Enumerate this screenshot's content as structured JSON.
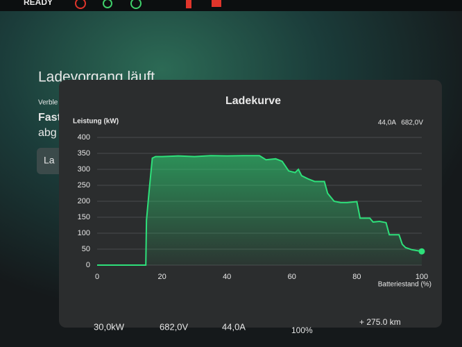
{
  "status": {
    "ready": "READY"
  },
  "background": {
    "heading": "Ladevorgang läuft",
    "line1": "Verble",
    "line2": "Fast",
    "line3": "abg",
    "button": "La"
  },
  "chart_data": {
    "type": "line",
    "title": "Ladekurve",
    "y_label": "Leistung (kW)",
    "x_label": "Batteriestand (%)",
    "current": "44,0A",
    "voltage": "682,0V",
    "color": "#2ee07a",
    "x": [
      0,
      15,
      15.2,
      16,
      17,
      18,
      20,
      25,
      30,
      35,
      40,
      45,
      50,
      52,
      55,
      57,
      59,
      61,
      62,
      63,
      65,
      67,
      70,
      71,
      73,
      75,
      77,
      80,
      81,
      84,
      85,
      87,
      89,
      90,
      93,
      94,
      95,
      97,
      100
    ],
    "values": [
      0,
      0,
      140,
      230,
      335,
      340,
      340,
      342,
      340,
      343,
      342,
      343,
      343,
      330,
      333,
      325,
      295,
      290,
      300,
      280,
      270,
      262,
      262,
      225,
      200,
      196,
      196,
      199,
      147,
      147,
      135,
      137,
      133,
      95,
      95,
      65,
      55,
      48,
      43
    ],
    "xlim": [
      0,
      100
    ],
    "xticks": [
      0,
      20,
      40,
      60,
      80,
      100
    ],
    "ylim": [
      0,
      400
    ],
    "yticks": [
      0,
      50,
      100,
      150,
      200,
      250,
      300,
      350,
      400
    ],
    "grid": true
  },
  "footer": {
    "power": "30,0kW",
    "voltage": "682,0V",
    "current": "44,0A",
    "soc": "100%",
    "range": "+ 275.0 km"
  }
}
